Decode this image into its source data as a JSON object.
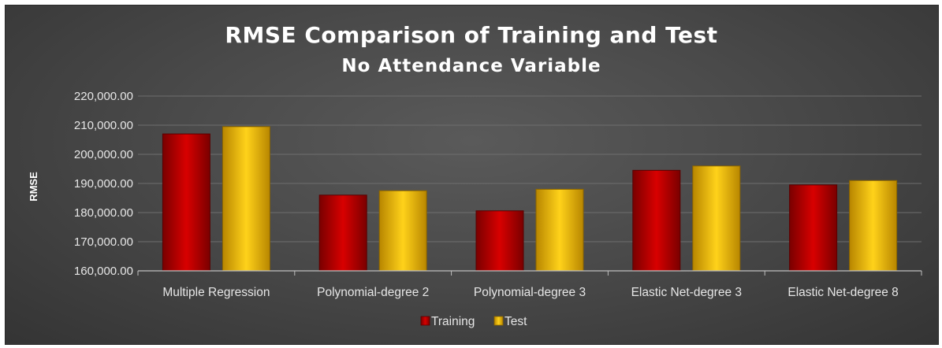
{
  "chart_data": {
    "type": "bar",
    "title": "RMSE Comparison of Training and Test",
    "subtitle": "No Attendance Variable",
    "xlabel": "",
    "ylabel": "RMSE",
    "categories": [
      "Multiple Regression",
      "Polynomial-degree 2",
      "Polynomial-degree 3",
      "Elastic Net-degree 3",
      "Elastic Net-degree 8"
    ],
    "series": [
      {
        "name": "Training",
        "values": [
          207000,
          186000,
          180600,
          194500,
          189500
        ],
        "color": "#c00000"
      },
      {
        "name": "Test",
        "values": [
          209500,
          187500,
          188000,
          196000,
          191000
        ],
        "color": "#ffc000"
      }
    ],
    "ylim": [
      160000,
      220000
    ],
    "yticks": [
      "160,000.00",
      "170,000.00",
      "180,000.00",
      "190,000.00",
      "200,000.00",
      "210,000.00",
      "220,000.00"
    ],
    "ytick_values": [
      160000,
      170000,
      180000,
      190000,
      200000,
      210000,
      220000
    ],
    "grid": true,
    "legend_position": "bottom"
  }
}
